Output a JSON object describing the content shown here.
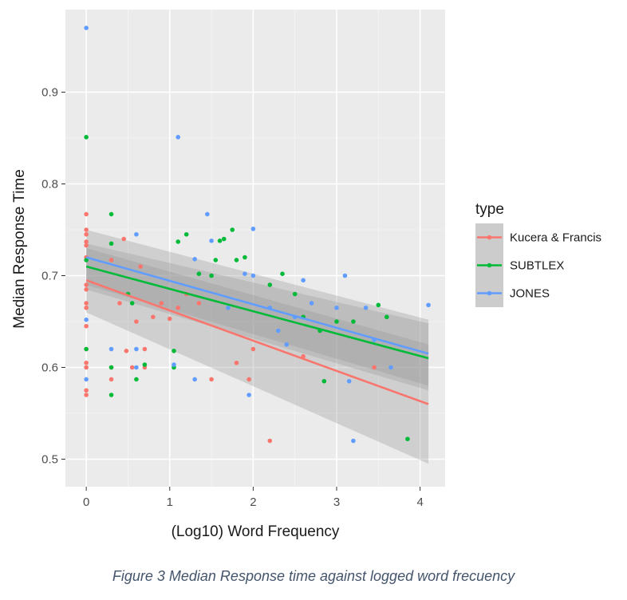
{
  "chart_data": {
    "type": "scatter",
    "xlabel": "(Log10) Word Frequency",
    "ylabel": "Median Response Time",
    "xlim": [
      -0.25,
      4.3
    ],
    "ylim": [
      0.47,
      0.99
    ],
    "x_ticks": [
      0,
      1,
      2,
      3,
      4
    ],
    "x_tick_labels": [
      "0",
      "1",
      "2",
      "3",
      "4"
    ],
    "y_ticks": [
      0.5,
      0.6,
      0.7,
      0.8,
      0.9
    ],
    "y_tick_labels": [
      "0.5",
      "0.6",
      "0.7",
      "0.8",
      "0.9"
    ],
    "grid": true,
    "legend_title": "type",
    "legend_position": "right",
    "series": [
      {
        "name": "Kucera & Francis",
        "color": "#f8766d",
        "points": [
          [
            0,
            0.767
          ],
          [
            0,
            0.75
          ],
          [
            0,
            0.745
          ],
          [
            0,
            0.737
          ],
          [
            0,
            0.733
          ],
          [
            0,
            0.72
          ],
          [
            0,
            0.69
          ],
          [
            0,
            0.685
          ],
          [
            0,
            0.67
          ],
          [
            0,
            0.665
          ],
          [
            0,
            0.645
          ],
          [
            0,
            0.62
          ],
          [
            0,
            0.605
          ],
          [
            0,
            0.6
          ],
          [
            0,
            0.575
          ],
          [
            0,
            0.57
          ],
          [
            0.3,
            0.717
          ],
          [
            0.3,
            0.6
          ],
          [
            0.3,
            0.587
          ],
          [
            0.4,
            0.67
          ],
          [
            0.45,
            0.74
          ],
          [
            0.48,
            0.618
          ],
          [
            0.55,
            0.6
          ],
          [
            0.6,
            0.65
          ],
          [
            0.65,
            0.71
          ],
          [
            0.7,
            0.62
          ],
          [
            0.7,
            0.6
          ],
          [
            0.8,
            0.655
          ],
          [
            0.9,
            0.67
          ],
          [
            1.0,
            0.653
          ],
          [
            1.1,
            0.665
          ],
          [
            1.2,
            0.68
          ],
          [
            1.35,
            0.67
          ],
          [
            1.5,
            0.587
          ],
          [
            1.8,
            0.605
          ],
          [
            1.95,
            0.587
          ],
          [
            2.0,
            0.62
          ],
          [
            2.2,
            0.52
          ],
          [
            2.6,
            0.612
          ],
          [
            3.45,
            0.6
          ]
        ],
        "trend": {
          "x": [
            0,
            4.1
          ],
          "y": [
            0.695,
            0.56
          ],
          "ci_low": [
            0.66,
            0.495
          ],
          "ci_high": [
            0.73,
            0.625
          ]
        }
      },
      {
        "name": "SUBTLEX",
        "color": "#00ba38",
        "points": [
          [
            0,
            0.851
          ],
          [
            0,
            0.717
          ],
          [
            0,
            0.62
          ],
          [
            0.3,
            0.767
          ],
          [
            0.3,
            0.735
          ],
          [
            0.3,
            0.6
          ],
          [
            0.3,
            0.57
          ],
          [
            0.5,
            0.68
          ],
          [
            0.55,
            0.67
          ],
          [
            0.6,
            0.587
          ],
          [
            0.7,
            0.603
          ],
          [
            1.05,
            0.618
          ],
          [
            1.05,
            0.6
          ],
          [
            1.1,
            0.737
          ],
          [
            1.2,
            0.745
          ],
          [
            1.35,
            0.702
          ],
          [
            1.5,
            0.7
          ],
          [
            1.55,
            0.717
          ],
          [
            1.6,
            0.738
          ],
          [
            1.65,
            0.74
          ],
          [
            1.75,
            0.75
          ],
          [
            1.8,
            0.717
          ],
          [
            1.9,
            0.72
          ],
          [
            2.2,
            0.69
          ],
          [
            2.35,
            0.702
          ],
          [
            2.5,
            0.68
          ],
          [
            2.6,
            0.655
          ],
          [
            2.8,
            0.64
          ],
          [
            2.85,
            0.585
          ],
          [
            3.0,
            0.65
          ],
          [
            3.2,
            0.65
          ],
          [
            3.5,
            0.668
          ],
          [
            3.6,
            0.655
          ],
          [
            3.85,
            0.522
          ]
        ],
        "trend": {
          "x": [
            0,
            4.1
          ],
          "y": [
            0.71,
            0.61
          ],
          "ci_low": [
            0.685,
            0.575
          ],
          "ci_high": [
            0.735,
            0.648
          ]
        }
      },
      {
        "name": "JONES",
        "color": "#619cff",
        "points": [
          [
            0,
            0.97
          ],
          [
            0,
            0.652
          ],
          [
            0,
            0.587
          ],
          [
            0.3,
            0.62
          ],
          [
            0.6,
            0.745
          ],
          [
            0.6,
            0.62
          ],
          [
            0.6,
            0.6
          ],
          [
            1.05,
            0.603
          ],
          [
            1.1,
            0.851
          ],
          [
            1.3,
            0.718
          ],
          [
            1.3,
            0.587
          ],
          [
            1.45,
            0.767
          ],
          [
            1.5,
            0.738
          ],
          [
            1.7,
            0.665
          ],
          [
            1.9,
            0.702
          ],
          [
            1.95,
            0.57
          ],
          [
            2.0,
            0.751
          ],
          [
            2.0,
            0.7
          ],
          [
            2.2,
            0.665
          ],
          [
            2.3,
            0.64
          ],
          [
            2.4,
            0.625
          ],
          [
            2.5,
            0.655
          ],
          [
            2.6,
            0.695
          ],
          [
            2.7,
            0.67
          ],
          [
            3.0,
            0.665
          ],
          [
            3.1,
            0.7
          ],
          [
            3.15,
            0.585
          ],
          [
            3.2,
            0.52
          ],
          [
            3.35,
            0.665
          ],
          [
            3.45,
            0.63
          ],
          [
            3.65,
            0.6
          ],
          [
            4.1,
            0.668
          ]
        ],
        "trend": {
          "x": [
            0,
            4.1
          ],
          "y": [
            0.72,
            0.615
          ],
          "ci_low": [
            0.69,
            0.58
          ],
          "ci_high": [
            0.75,
            0.652
          ]
        }
      }
    ]
  },
  "caption": "Figure 3 Median Response time against logged word frecuency"
}
